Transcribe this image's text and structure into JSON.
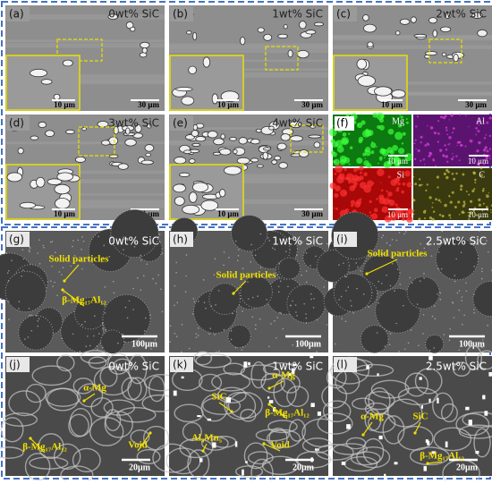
{
  "panels": [
    {
      "label": "(a)",
      "sample": "0wt% SiC",
      "scale": "30 μm",
      "inset_scale": "10 μm"
    },
    {
      "label": "(b)",
      "sample": "1wt% SiC",
      "scale": "30 μm",
      "inset_scale": "10 μm"
    },
    {
      "label": "(c)",
      "sample": "2wt% SiC",
      "scale": "30 μm",
      "inset_scale": "10 μm"
    },
    {
      "label": "(d)",
      "sample": "3wt% SiC",
      "scale": "30 μm",
      "inset_scale": "10 μm"
    },
    {
      "label": "(e)",
      "sample": "4wt% SiC",
      "scale": "30 μm",
      "inset_scale": "10 μm"
    },
    {
      "label": "(f)",
      "maps": [
        {
          "element": "Mg",
          "scale": "10 μm"
        },
        {
          "element": "Al",
          "scale": "10 μm"
        },
        {
          "element": "Si",
          "scale": "10 μm"
        },
        {
          "element": "C",
          "scale": "10 μm"
        }
      ]
    },
    {
      "label": "(g)",
      "sample": "0wt% SiC",
      "scale": "100μm",
      "annotations": [
        "Solid particles",
        "β-Mg₁₇Al₁₂"
      ]
    },
    {
      "label": "(h)",
      "sample": "1wt% SiC",
      "scale": "100μm",
      "annotations": [
        "Solid particles"
      ]
    },
    {
      "label": "(i)",
      "sample": "2.5wt% SiC",
      "scale": "100μm",
      "annotations": [
        "Solid particles"
      ]
    },
    {
      "label": "(j)",
      "sample": "0wt% SiC",
      "scale": "20μm",
      "annotations": [
        "α-Mg",
        "β-Mg₁₇Al₁₂",
        "Void"
      ]
    },
    {
      "label": "(k)",
      "sample": "1wt% SiC",
      "scale": "20μm",
      "annotations": [
        "α-Mg",
        "SiC",
        "β-Mg₁₇Al₁₂",
        "Al₈Mn₅",
        "Void"
      ]
    },
    {
      "label": "(l)",
      "sample": "2.5wt% SiC",
      "scale": "20μm",
      "annotations": [
        "α-Mg",
        "SiC",
        "β-Mg₁₇Al₁₂"
      ]
    }
  ]
}
